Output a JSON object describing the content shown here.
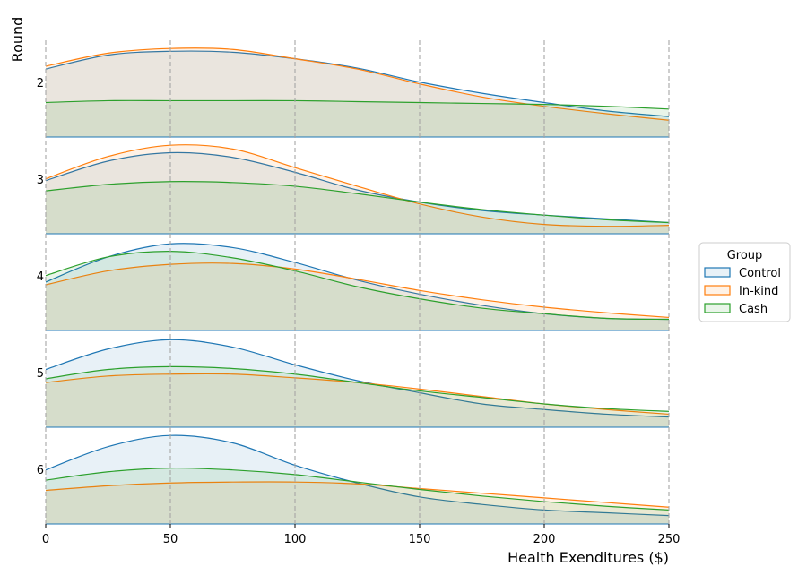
{
  "chart_data": {
    "type": "area",
    "subtype": "ridgeline-density",
    "xlabel": "Health Exenditures ($)",
    "ylabel": "Round",
    "xlim": [
      0,
      250
    ],
    "x_ticks": [
      "0",
      "50",
      "100",
      "150",
      "200",
      "250"
    ],
    "x_tick_values": [
      0,
      50,
      100,
      150,
      200,
      250
    ],
    "grid": "vertical dashed at x ticks",
    "legend": {
      "title": "Group",
      "placement": "right",
      "entries": [
        "Control",
        "In-kind",
        "Cash"
      ]
    },
    "colors": {
      "Control": "#1f77b4",
      "In-kind": "#ff7f0e",
      "Cash": "#2ca02c"
    },
    "x": [
      0,
      25,
      50,
      75,
      100,
      125,
      150,
      175,
      200,
      225,
      250
    ],
    "rounds": [
      {
        "label": "2",
        "series": [
          {
            "name": "Control",
            "values": [
              0.73,
              0.88,
              0.92,
              0.91,
              0.84,
              0.74,
              0.59,
              0.47,
              0.37,
              0.28,
              0.22
            ]
          },
          {
            "name": "In-kind",
            "values": [
              0.76,
              0.9,
              0.95,
              0.94,
              0.84,
              0.73,
              0.57,
              0.43,
              0.33,
              0.25,
              0.18
            ]
          },
          {
            "name": "Cash",
            "values": [
              0.37,
              0.39,
              0.39,
              0.39,
              0.39,
              0.38,
              0.37,
              0.36,
              0.35,
              0.33,
              0.3
            ]
          }
        ]
      },
      {
        "label": "3",
        "series": [
          {
            "name": "Control",
            "values": [
              0.57,
              0.78,
              0.87,
              0.82,
              0.66,
              0.47,
              0.34,
              0.25,
              0.2,
              0.16,
              0.12
            ]
          },
          {
            "name": "In-kind",
            "values": [
              0.59,
              0.83,
              0.95,
              0.91,
              0.71,
              0.51,
              0.32,
              0.18,
              0.1,
              0.08,
              0.09
            ]
          },
          {
            "name": "Cash",
            "values": [
              0.46,
              0.53,
              0.56,
              0.55,
              0.51,
              0.43,
              0.34,
              0.26,
              0.2,
              0.15,
              0.12
            ]
          }
        ]
      },
      {
        "label": "4",
        "series": [
          {
            "name": "Control",
            "values": [
              0.52,
              0.79,
              0.93,
              0.89,
              0.73,
              0.54,
              0.39,
              0.27,
              0.18,
              0.13,
              0.12
            ]
          },
          {
            "name": "In-kind",
            "values": [
              0.49,
              0.64,
              0.71,
              0.72,
              0.66,
              0.55,
              0.43,
              0.33,
              0.25,
              0.19,
              0.14
            ]
          },
          {
            "name": "Cash",
            "values": [
              0.59,
              0.79,
              0.85,
              0.78,
              0.64,
              0.47,
              0.34,
              0.24,
              0.18,
              0.13,
              0.12
            ]
          }
        ]
      },
      {
        "label": "5",
        "series": [
          {
            "name": "Control",
            "values": [
              0.62,
              0.84,
              0.94,
              0.86,
              0.67,
              0.5,
              0.37,
              0.25,
              0.19,
              0.14,
              0.11
            ]
          },
          {
            "name": "In-kind",
            "values": [
              0.48,
              0.55,
              0.57,
              0.57,
              0.53,
              0.48,
              0.41,
              0.33,
              0.25,
              0.19,
              0.14
            ]
          },
          {
            "name": "Cash",
            "values": [
              0.52,
              0.62,
              0.65,
              0.63,
              0.57,
              0.48,
              0.39,
              0.32,
              0.25,
              0.2,
              0.17
            ]
          }
        ]
      },
      {
        "label": "6",
        "series": [
          {
            "name": "Control",
            "values": [
              0.58,
              0.83,
              0.95,
              0.87,
              0.63,
              0.44,
              0.29,
              0.21,
              0.15,
              0.12,
              0.09
            ]
          },
          {
            "name": "In-kind",
            "values": [
              0.36,
              0.41,
              0.44,
              0.45,
              0.45,
              0.43,
              0.38,
              0.33,
              0.28,
              0.23,
              0.18
            ]
          },
          {
            "name": "Cash",
            "values": [
              0.47,
              0.56,
              0.6,
              0.58,
              0.53,
              0.45,
              0.37,
              0.3,
              0.24,
              0.19,
              0.15
            ]
          }
        ]
      }
    ]
  }
}
